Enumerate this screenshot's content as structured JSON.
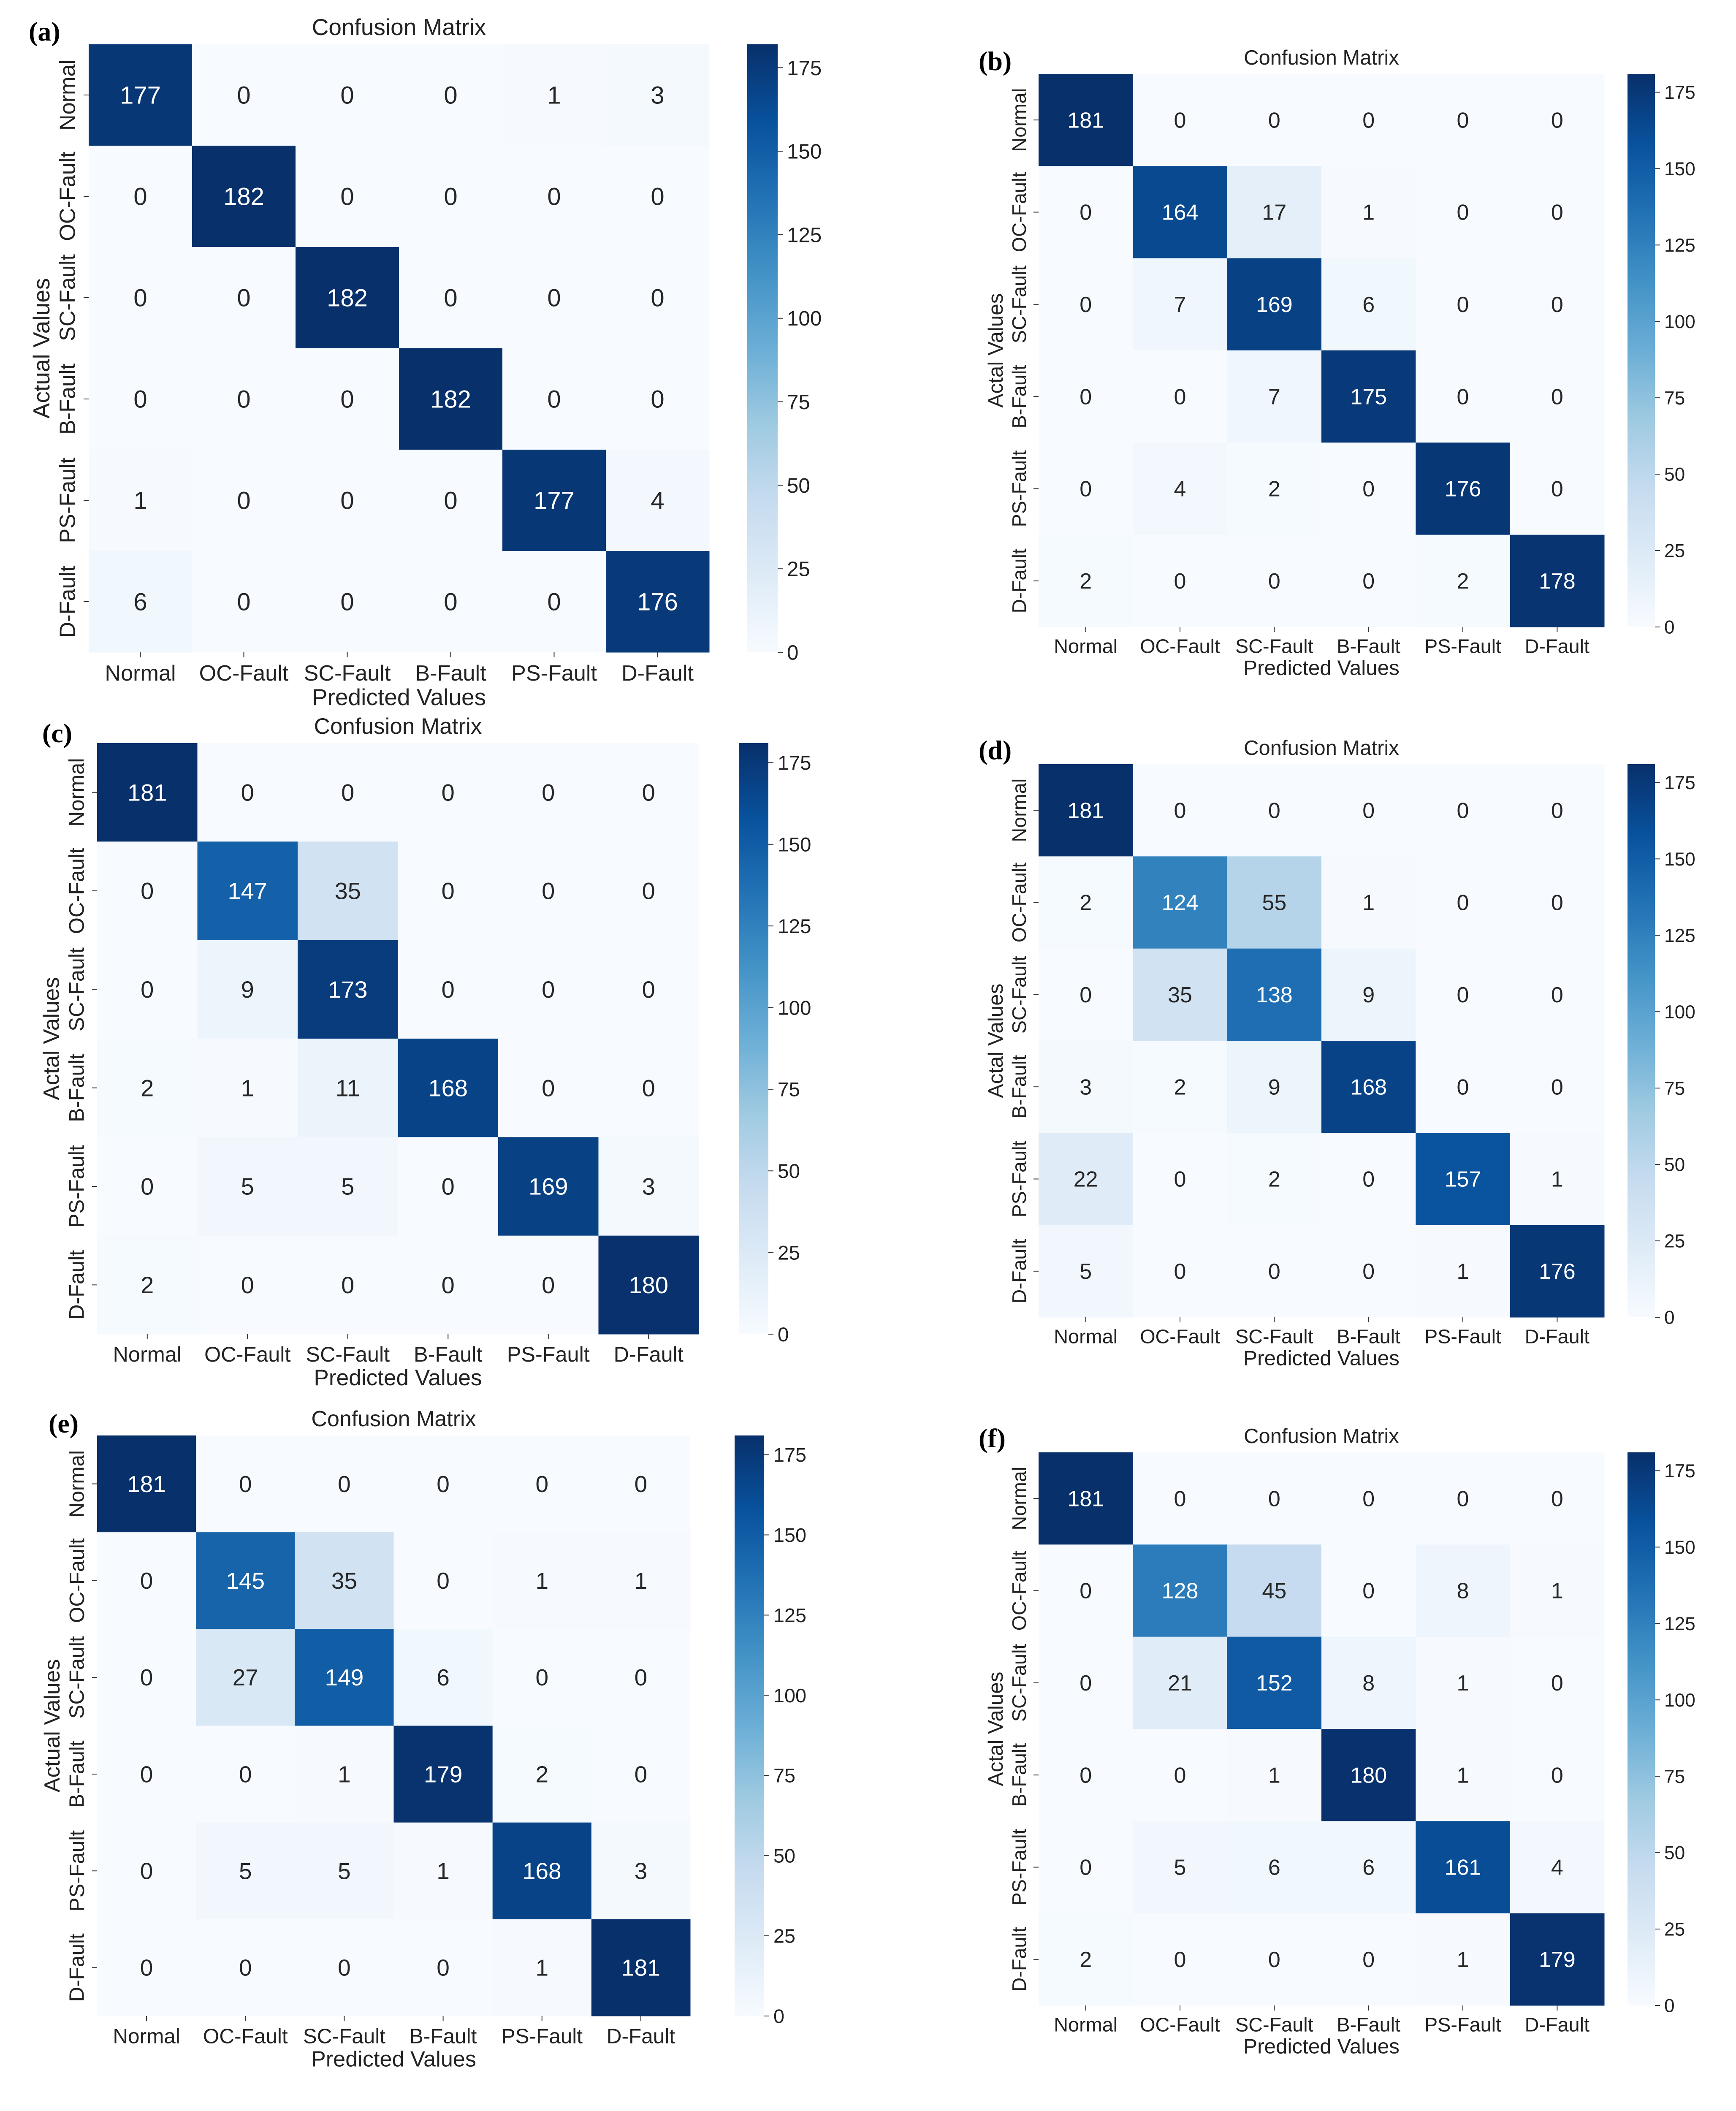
{
  "chart_data": [
    {
      "panel": "(a)",
      "type": "heatmap",
      "title": "Confusion Matrix",
      "xlabel": "Predicted Values",
      "ylabel": "Actual Values",
      "x_categories": [
        "Normal",
        "OC-Fault",
        "SC-Fault",
        "B-Fault",
        "PS-Fault",
        "D-Fault"
      ],
      "y_categories": [
        "Normal",
        "OC-Fault",
        "SC-Fault",
        "B-Fault",
        "PS-Fault",
        "D-Fault"
      ],
      "values": [
        [
          177,
          0,
          0,
          0,
          1,
          3
        ],
        [
          0,
          182,
          0,
          0,
          0,
          0
        ],
        [
          0,
          0,
          182,
          0,
          0,
          0
        ],
        [
          0,
          0,
          0,
          182,
          0,
          0
        ],
        [
          1,
          0,
          0,
          0,
          177,
          4
        ],
        [
          6,
          0,
          0,
          0,
          0,
          176
        ]
      ],
      "colorbar": {
        "range": [
          0,
          182
        ],
        "ticks": [
          0,
          25,
          50,
          75,
          100,
          125,
          150,
          175
        ]
      },
      "colormap": "Blues"
    },
    {
      "panel": "(b)",
      "type": "heatmap",
      "title": "Confusion Matrix",
      "xlabel": "Predicted Values",
      "ylabel": "Actal Values",
      "x_categories": [
        "Normal",
        "OC-Fault",
        "SC-Fault",
        "B-Fault",
        "PS-Fault",
        "D-Fault"
      ],
      "y_categories": [
        "Normal",
        "OC-Fault",
        "SC-Fault",
        "B-Fault",
        "PS-Fault",
        "D-Fault"
      ],
      "values": [
        [
          181,
          0,
          0,
          0,
          0,
          0
        ],
        [
          0,
          164,
          17,
          1,
          0,
          0
        ],
        [
          0,
          7,
          169,
          6,
          0,
          0
        ],
        [
          0,
          0,
          7,
          175,
          0,
          0
        ],
        [
          0,
          4,
          2,
          0,
          176,
          0
        ],
        [
          2,
          0,
          0,
          0,
          2,
          178
        ]
      ],
      "colorbar": {
        "range": [
          0,
          181
        ],
        "ticks": [
          0,
          25,
          50,
          75,
          100,
          125,
          150,
          175
        ]
      },
      "colormap": "Blues"
    },
    {
      "panel": "(c)",
      "type": "heatmap",
      "title": "Confusion Matrix",
      "xlabel": "Predicted Values",
      "ylabel": "Actal Values",
      "x_categories": [
        "Normal",
        "OC-Fault",
        "SC-Fault",
        "B-Fault",
        "PS-Fault",
        "D-Fault"
      ],
      "y_categories": [
        "Normal",
        "OC-Fault",
        "SC-Fault",
        "B-Fault",
        "PS-Fault",
        "D-Fault"
      ],
      "values": [
        [
          181,
          0,
          0,
          0,
          0,
          0
        ],
        [
          0,
          147,
          35,
          0,
          0,
          0
        ],
        [
          0,
          9,
          173,
          0,
          0,
          0
        ],
        [
          2,
          1,
          11,
          168,
          0,
          0
        ],
        [
          0,
          5,
          5,
          0,
          169,
          3
        ],
        [
          2,
          0,
          0,
          0,
          0,
          180
        ]
      ],
      "colorbar": {
        "range": [
          0,
          181
        ],
        "ticks": [
          0,
          25,
          50,
          75,
          100,
          125,
          150,
          175
        ]
      },
      "colormap": "Blues"
    },
    {
      "panel": "(d)",
      "type": "heatmap",
      "title": "Confusion Matrix",
      "xlabel": "Predicted Values",
      "ylabel": "Actal Values",
      "x_categories": [
        "Normal",
        "OC-Fault",
        "SC-Fault",
        "B-Fault",
        "PS-Fault",
        "D-Fault"
      ],
      "y_categories": [
        "Normal",
        "OC-Fault",
        "SC-Fault",
        "B-Fault",
        "PS-Fault",
        "D-Fault"
      ],
      "values": [
        [
          181,
          0,
          0,
          0,
          0,
          0
        ],
        [
          2,
          124,
          55,
          1,
          0,
          0
        ],
        [
          0,
          35,
          138,
          9,
          0,
          0
        ],
        [
          3,
          2,
          9,
          168,
          0,
          0
        ],
        [
          22,
          0,
          2,
          0,
          157,
          1
        ],
        [
          5,
          0,
          0,
          0,
          1,
          176
        ]
      ],
      "colorbar": {
        "range": [
          0,
          181
        ],
        "ticks": [
          0,
          25,
          50,
          75,
          100,
          125,
          150,
          175
        ]
      },
      "colormap": "Blues"
    },
    {
      "panel": "(e)",
      "type": "heatmap",
      "title": "Confusion Matrix",
      "xlabel": "Predicted Values",
      "ylabel": "Actual Values",
      "x_categories": [
        "Normal",
        "OC-Fault",
        "SC-Fault",
        "B-Fault",
        "PS-Fault",
        "D-Fault"
      ],
      "y_categories": [
        "Normal",
        "OC-Fault",
        "SC-Fault",
        "B-Fault",
        "PS-Fault",
        "D-Fault"
      ],
      "values": [
        [
          181,
          0,
          0,
          0,
          0,
          0
        ],
        [
          0,
          145,
          35,
          0,
          1,
          1
        ],
        [
          0,
          27,
          149,
          6,
          0,
          0
        ],
        [
          0,
          0,
          1,
          179,
          2,
          0
        ],
        [
          0,
          5,
          5,
          1,
          168,
          3
        ],
        [
          0,
          0,
          0,
          0,
          1,
          181
        ]
      ],
      "colorbar": {
        "range": [
          0,
          181
        ],
        "ticks": [
          0,
          25,
          50,
          75,
          100,
          125,
          150,
          175
        ]
      },
      "colormap": "Blues"
    },
    {
      "panel": "(f)",
      "type": "heatmap",
      "title": "Confusion Matrix",
      "xlabel": "Predicted Values",
      "ylabel": "Actal Values",
      "x_categories": [
        "Normal",
        "OC-Fault",
        "SC-Fault",
        "B-Fault",
        "PS-Fault",
        "D-Fault"
      ],
      "y_categories": [
        "Normal",
        "OC-Fault",
        "SC-Fault",
        "B-Fault",
        "PS-Fault",
        "D-Fault"
      ],
      "values": [
        [
          181,
          0,
          0,
          0,
          0,
          0
        ],
        [
          0,
          128,
          45,
          0,
          8,
          1
        ],
        [
          0,
          21,
          152,
          8,
          1,
          0
        ],
        [
          0,
          0,
          1,
          180,
          1,
          0
        ],
        [
          0,
          5,
          6,
          6,
          161,
          4
        ],
        [
          2,
          0,
          0,
          0,
          1,
          179
        ]
      ],
      "colorbar": {
        "range": [
          0,
          181
        ],
        "ticks": [
          0,
          25,
          50,
          75,
          100,
          125,
          150,
          175
        ]
      },
      "colormap": "Blues"
    }
  ]
}
